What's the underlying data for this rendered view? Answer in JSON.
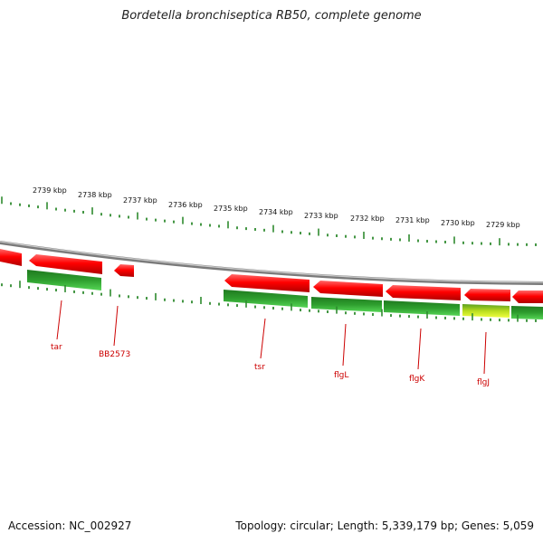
{
  "title": "Bordetella bronchiseptica RB50, complete genome",
  "footer": {
    "accession": "Accession: NC_002927",
    "summary": "Topology: circular; Length: 5,339,179 bp; Genes: 5,059"
  },
  "scale_labels": [
    "2739 kbp",
    "2738 kbp",
    "2737 kbp",
    "2736 kbp",
    "2735 kbp",
    "2734 kbp",
    "2733 kbp",
    "2732 kbp",
    "2731 kbp",
    "2730 kbp",
    "2729 kbp"
  ],
  "gene_labels": [
    "tar",
    "BB2573",
    "tsr",
    "flgL",
    "flgK",
    "flgJ"
  ],
  "colors": {
    "forward_gene": "#e80000",
    "reverse_gene": "#2a9a2a",
    "highlight_gene": "#c8e000",
    "backbone": "#8c8c8c",
    "ticks": "#2f8a2f",
    "label": "#cc0000"
  }
}
